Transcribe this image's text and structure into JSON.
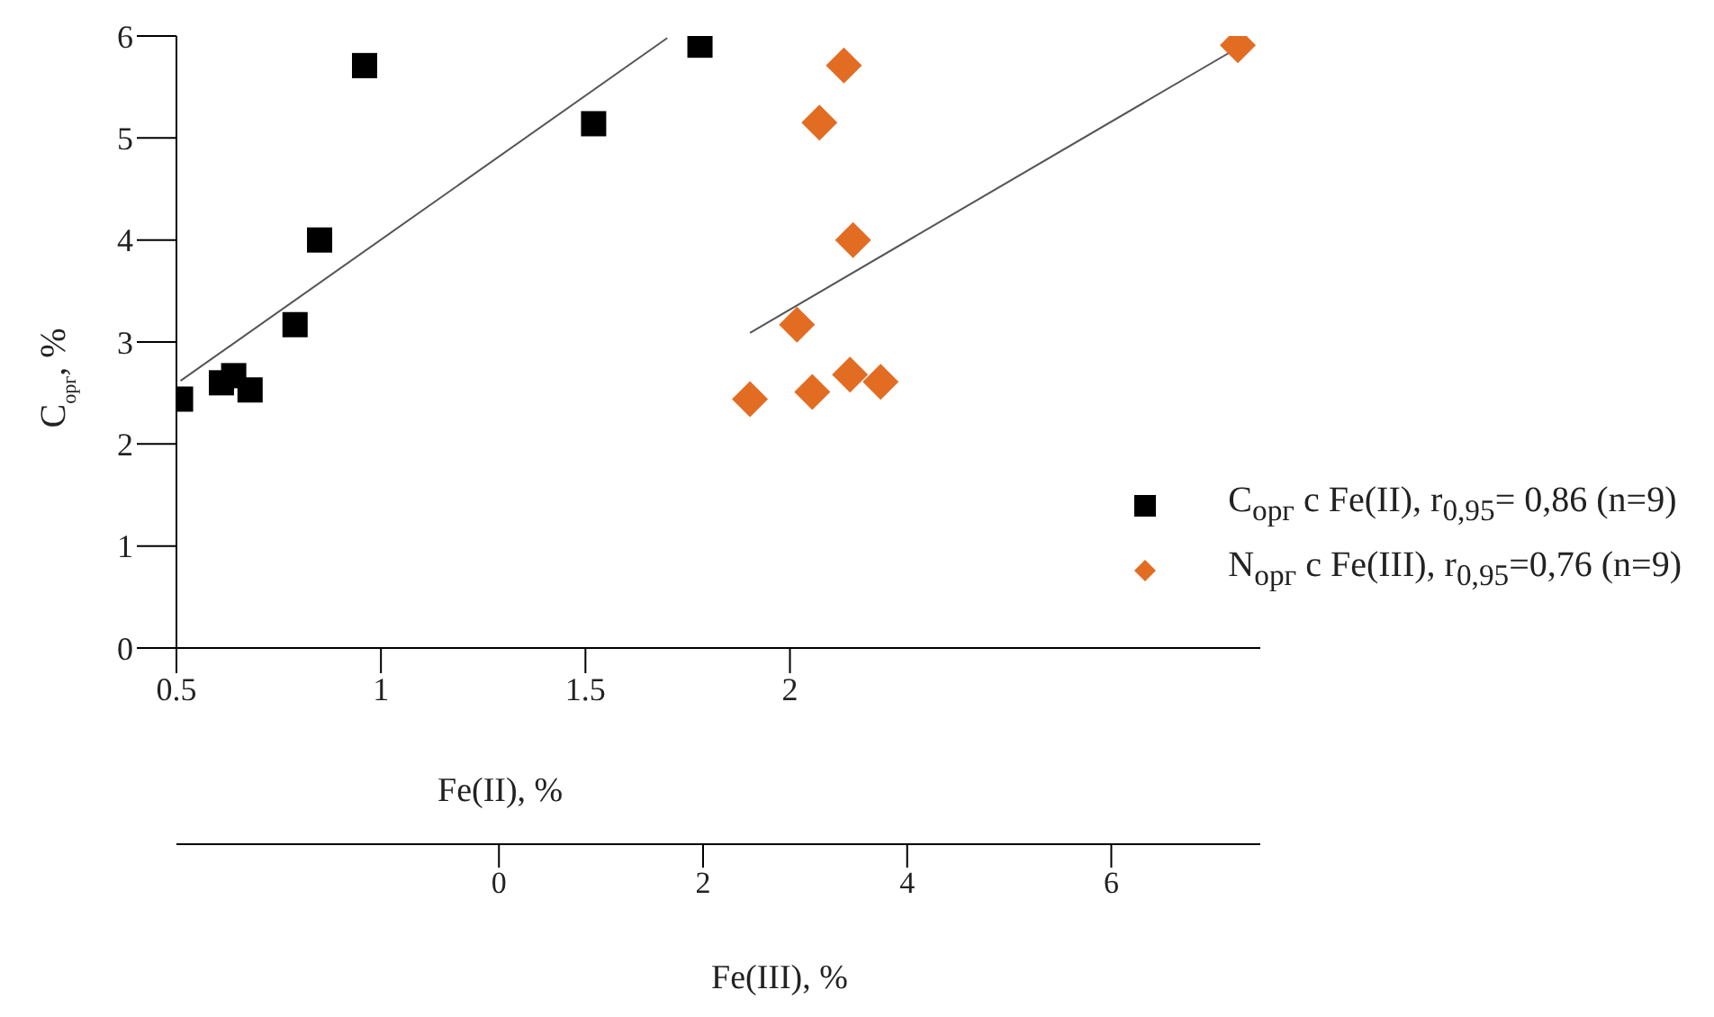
{
  "chart_data": {
    "type": "scatter",
    "ylabel": "C$_{орг}$, %",
    "xlabel": "Fe(II), %",
    "x2label": "Fe(III), %",
    "xlim": [
      0.5,
      3.15
    ],
    "xticks": [
      0.5,
      1,
      1.5,
      2
    ],
    "x2lim": [
      -3.16,
      7.46
    ],
    "x2ticks": [
      0,
      2,
      4,
      6
    ],
    "ylim": [
      0,
      6
    ],
    "yticks": [
      0,
      1,
      2,
      3,
      4,
      5,
      6
    ],
    "grid": false,
    "legend": "right",
    "series": [
      {
        "name": "C$_{орг}$ с Fe(II), r$_{0,95}$= 0,86 (n=9)",
        "color": "#000000",
        "marker": "square",
        "x": [
          0.51,
          0.61,
          0.64,
          0.68,
          0.79,
          0.85,
          0.96,
          1.52,
          1.78
        ],
        "values": [
          2.44,
          2.6,
          2.67,
          2.53,
          3.17,
          4.0,
          5.71,
          5.14,
          5.91
        ]
      },
      {
        "name": "N$_{орг}$ с Fe(III), r$_{0,95}$=0,76 (n=9)",
        "color": "#e36c23",
        "marker": "diamond",
        "axis": "x2",
        "x": [
          2.46,
          3.07,
          2.92,
          3.44,
          3.74,
          3.14,
          3.38,
          3.47,
          7.24
        ],
        "values": [
          2.44,
          2.51,
          3.17,
          2.68,
          2.61,
          5.15,
          5.71,
          4.0,
          5.91
        ]
      },
      {
        "type": "line",
        "color": "#555555",
        "x": [
          0.51,
          1.7
        ],
        "values": [
          2.62,
          5.98
        ]
      },
      {
        "type": "line",
        "color": "#555555",
        "axis": "x2",
        "x": [
          2.46,
          7.18
        ],
        "values": [
          3.09,
          5.85
        ]
      }
    ]
  }
}
